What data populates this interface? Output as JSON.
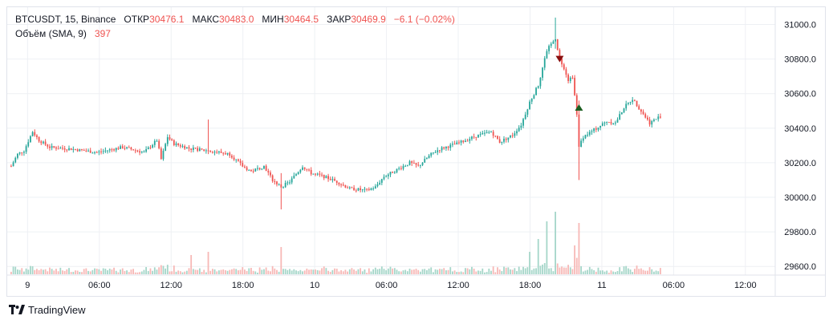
{
  "legend": {
    "symbol": "BTCUSDT, 15, Binance",
    "open_label": "ОТКР",
    "open": "30476.1",
    "high_label": "МАКС",
    "high": "30483.0",
    "low_label": "МИН",
    "low": "30464.5",
    "close_label": "ЗАКР",
    "close": "30469.9",
    "change": "−6.1 (−0.02%)",
    "volume_label": "Объём (SMA, 9)",
    "volume_value": "397"
  },
  "brand": {
    "name": "TradingView",
    "logo_icon": "tradingview-logo-icon"
  },
  "colors": {
    "up": "#26a69a",
    "down": "#ef5350",
    "vol_up": "#a5d6c9",
    "vol_down": "#f7b8b6",
    "grid": "#eef0f4",
    "axis_text": "#131722",
    "marker_down": "#880e0e",
    "marker_up": "#1b5e20"
  },
  "chart_data": {
    "type": "candlestick",
    "x_ticks": [
      "9",
      "06:00",
      "12:00",
      "18:00",
      "10",
      "06:00",
      "12:00",
      "18:00",
      "11",
      "06:00",
      "12:00"
    ],
    "y_ticks": [
      "31000.0",
      "30800.0",
      "30600.0",
      "30400.0",
      "30200.0",
      "30000.0",
      "29800.0",
      "29600.0"
    ],
    "ylim": [
      29550,
      31100
    ],
    "price_path": [
      [
        0,
        30180
      ],
      [
        3,
        30250
      ],
      [
        6,
        30270
      ],
      [
        10,
        30380
      ],
      [
        13,
        30330
      ],
      [
        18,
        30290
      ],
      [
        28,
        30280
      ],
      [
        40,
        30260
      ],
      [
        52,
        30290
      ],
      [
        62,
        30260
      ],
      [
        68,
        30330
      ],
      [
        70,
        30220
      ],
      [
        73,
        30350
      ],
      [
        76,
        30310
      ],
      [
        84,
        30280
      ],
      [
        92,
        30270
      ],
      [
        102,
        30250
      ],
      [
        108,
        30180
      ],
      [
        112,
        30150
      ],
      [
        118,
        30180
      ],
      [
        122,
        30100
      ],
      [
        126,
        30060
      ],
      [
        130,
        30090
      ],
      [
        136,
        30180
      ],
      [
        140,
        30140
      ],
      [
        146,
        30120
      ],
      [
        152,
        30090
      ],
      [
        158,
        30050
      ],
      [
        166,
        30040
      ],
      [
        170,
        30060
      ],
      [
        174,
        30120
      ],
      [
        180,
        30160
      ],
      [
        186,
        30200
      ],
      [
        190,
        30180
      ],
      [
        196,
        30250
      ],
      [
        200,
        30280
      ],
      [
        208,
        30310
      ],
      [
        216,
        30350
      ],
      [
        224,
        30380
      ],
      [
        228,
        30320
      ],
      [
        234,
        30360
      ],
      [
        238,
        30420
      ],
      [
        242,
        30550
      ],
      [
        246,
        30650
      ],
      [
        250,
        30850
      ],
      [
        254,
        30920
      ],
      [
        256,
        30800
      ],
      [
        258,
        30750
      ],
      [
        260,
        30680
      ],
      [
        262,
        30700
      ],
      [
        264,
        30480
      ],
      [
        265,
        30300
      ],
      [
        267,
        30350
      ],
      [
        272,
        30390
      ],
      [
        278,
        30440
      ],
      [
        282,
        30430
      ],
      [
        286,
        30520
      ],
      [
        290,
        30570
      ],
      [
        294,
        30500
      ],
      [
        298,
        30430
      ],
      [
        303,
        30470
      ]
    ],
    "spikes": [
      {
        "bar": 126,
        "high": 30140,
        "low": 29930
      },
      {
        "bar": 254,
        "high": 31040,
        "low": 30860
      },
      {
        "bar": 265,
        "high": 30560,
        "low": 30100
      },
      {
        "bar": 92,
        "high": 30450,
        "low": 30250
      }
    ],
    "volume_spikes": [
      {
        "bar": 250,
        "value": 330
      },
      {
        "bar": 254,
        "value": 390
      },
      {
        "bar": 265,
        "value": 320
      },
      {
        "bar": 92,
        "value": 140
      },
      {
        "bar": 126,
        "value": 170
      },
      {
        "bar": 246,
        "value": 220
      },
      {
        "bar": 242,
        "value": 140
      },
      {
        "bar": 263,
        "value": 180
      },
      {
        "bar": 84,
        "value": 120
      }
    ],
    "markers": [
      {
        "bar": 256,
        "price": 30800,
        "direction": "down"
      },
      {
        "bar": 265,
        "price": 30520,
        "direction": "up"
      }
    ]
  }
}
